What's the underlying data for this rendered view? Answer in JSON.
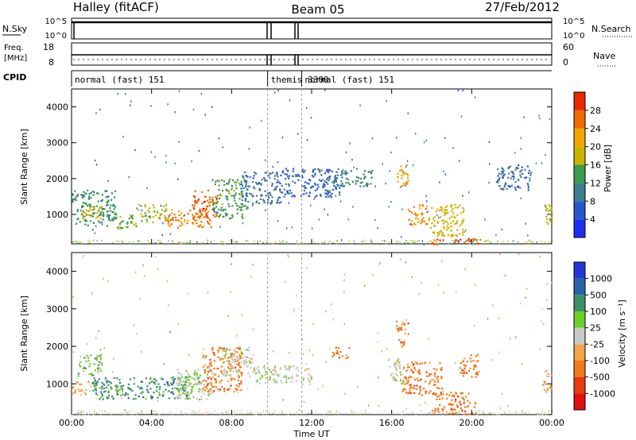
{
  "header": {
    "station": "Halley (fitACF)",
    "beam": "Beam 05",
    "date": "27/Feb/2012"
  },
  "status_panels": {
    "nsky": {
      "label": "N.Sky",
      "ticks": [
        "10^5",
        "10^0"
      ]
    },
    "nsearch": {
      "label": "N.Search",
      "ticks": [
        "10^5",
        "10^0"
      ]
    },
    "freq": {
      "label_line1": "Freq.",
      "label_line2": "[MHz]",
      "ticks": [
        "18",
        "8"
      ]
    },
    "nave": {
      "label": "Nave",
      "ticks": [
        "60",
        "0"
      ]
    },
    "cpid": {
      "label": "CPID",
      "segments": [
        {
          "name": "normal (fast) 151",
          "start_hr": 0.0,
          "end_hr": 9.8
        },
        {
          "name": "themis 3300",
          "start_hr": 9.8,
          "end_hr": 11.5
        },
        {
          "name": "normal (fast) 151",
          "start_hr": 11.5,
          "end_hr": 24.0
        }
      ]
    }
  },
  "chart_data": [
    {
      "type": "heatmap",
      "name": "power",
      "ylabel": "Slant Range [km]",
      "xlabel": "",
      "ylim": [
        180,
        4500
      ],
      "yticks": [
        "1000",
        "2000",
        "3000",
        "4000"
      ],
      "ytick_values": [
        1000,
        2000,
        3000,
        4000
      ],
      "colorbar": {
        "label": "Power [dB]",
        "ticks": [
          "4",
          "8",
          "12",
          "16",
          "20",
          "24",
          "28"
        ],
        "tick_values": [
          4,
          8,
          12,
          16,
          20,
          24,
          28
        ],
        "range": [
          0,
          32
        ],
        "colors": [
          "#1e2ef0",
          "#2a57c8",
          "#3f7d8c",
          "#3a9a4e",
          "#c8b400",
          "#f5a500",
          "#ef6a00",
          "#e82a00"
        ]
      },
      "patches": [
        {
          "x": [
            0.0,
            2.2
          ],
          "y": [
            700,
            1700
          ],
          "level": 13
        },
        {
          "x": [
            0.5,
            1.5
          ],
          "y": [
            900,
            1300
          ],
          "level": 19
        },
        {
          "x": [
            2.0,
            3.2
          ],
          "y": [
            600,
            1000
          ],
          "level": 15
        },
        {
          "x": [
            3.3,
            4.8
          ],
          "y": [
            800,
            1300
          ],
          "level": 17
        },
        {
          "x": [
            4.7,
            7.0
          ],
          "y": [
            650,
            1150
          ],
          "level": 25
        },
        {
          "x": [
            6.0,
            7.3
          ],
          "y": [
            900,
            1700
          ],
          "level": 27
        },
        {
          "x": [
            7.0,
            8.8
          ],
          "y": [
            900,
            2000
          ],
          "level": 14
        },
        {
          "x": [
            8.4,
            10.5
          ],
          "y": [
            1300,
            2200
          ],
          "level": 9
        },
        {
          "x": [
            10.5,
            13.5
          ],
          "y": [
            1500,
            2300
          ],
          "level": 7
        },
        {
          "x": [
            13.0,
            15.0
          ],
          "y": [
            1800,
            2300
          ],
          "level": 11
        },
        {
          "x": [
            16.2,
            16.8
          ],
          "y": [
            1800,
            2500
          ],
          "level": 22
        },
        {
          "x": [
            16.8,
            17.8
          ],
          "y": [
            700,
            1300
          ],
          "level": 23
        },
        {
          "x": [
            17.8,
            19.6
          ],
          "y": [
            400,
            1300
          ],
          "level": 19
        },
        {
          "x": [
            18.0,
            20.4
          ],
          "y": [
            180,
            350
          ],
          "level": 29
        },
        {
          "x": [
            21.2,
            23.0
          ],
          "y": [
            1700,
            2400
          ],
          "level": 8
        },
        {
          "x": [
            23.6,
            24.0
          ],
          "y": [
            700,
            1300
          ],
          "level": 18
        }
      ]
    },
    {
      "type": "heatmap",
      "name": "velocity",
      "ylabel": "Slant Range [km]",
      "xlabel": "Time UT",
      "ylim": [
        180,
        4500
      ],
      "yticks": [
        "1000",
        "2000",
        "3000",
        "4000"
      ],
      "ytick_values": [
        1000,
        2000,
        3000,
        4000
      ],
      "xticks": [
        "00:00",
        "04:00",
        "08:00",
        "12:00",
        "16:00",
        "20:00",
        "00:00"
      ],
      "xtick_values": [
        0,
        4,
        8,
        12,
        16,
        20,
        24
      ],
      "colorbar": {
        "label": "Velocity [m s⁻¹]",
        "ticks": [
          "1000",
          "500",
          "100",
          "25",
          "-25",
          "-100",
          "-500",
          "-1000"
        ],
        "colors": [
          "#2436d8",
          "#2b63a8",
          "#3e8e6a",
          "#6ccf2c",
          "#c8c8c8",
          "#f2a44a",
          "#ef7a1a",
          "#e83a10",
          "#e01010"
        ]
      },
      "patches": [
        {
          "x": [
            0.3,
            1.5
          ],
          "y": [
            1200,
            1800
          ],
          "category": "25"
        },
        {
          "x": [
            0.0,
            1.0
          ],
          "y": [
            700,
            1100
          ],
          "category": "-100"
        },
        {
          "x": [
            1.0,
            5.8
          ],
          "y": [
            600,
            1200
          ],
          "category": "100"
        },
        {
          "x": [
            5.2,
            7.0
          ],
          "y": [
            600,
            1400
          ],
          "category": "-25"
        },
        {
          "x": [
            5.4,
            6.4
          ],
          "y": [
            800,
            1300
          ],
          "category": "25"
        },
        {
          "x": [
            6.5,
            8.5
          ],
          "y": [
            800,
            2000
          ],
          "category": "-500"
        },
        {
          "x": [
            7.5,
            9.0
          ],
          "y": [
            1200,
            2000
          ],
          "category": "-25"
        },
        {
          "x": [
            9.0,
            12.0
          ],
          "y": [
            1000,
            1500
          ],
          "category": "-25"
        },
        {
          "x": [
            13.0,
            14.0
          ],
          "y": [
            1700,
            2000
          ],
          "category": "-500"
        },
        {
          "x": [
            16.2,
            16.8
          ],
          "y": [
            2000,
            2700
          ],
          "category": "-500"
        },
        {
          "x": [
            15.8,
            16.6
          ],
          "y": [
            1000,
            1700
          ],
          "category": "-25"
        },
        {
          "x": [
            16.5,
            18.5
          ],
          "y": [
            700,
            1600
          ],
          "category": "-500"
        },
        {
          "x": [
            18.0,
            20.2
          ],
          "y": [
            200,
            800
          ],
          "category": "-500"
        },
        {
          "x": [
            19.3,
            20.3
          ],
          "y": [
            1200,
            1800
          ],
          "category": "-500"
        },
        {
          "x": [
            23.5,
            24.0
          ],
          "y": [
            800,
            1400
          ],
          "category": "-100"
        }
      ]
    }
  ]
}
